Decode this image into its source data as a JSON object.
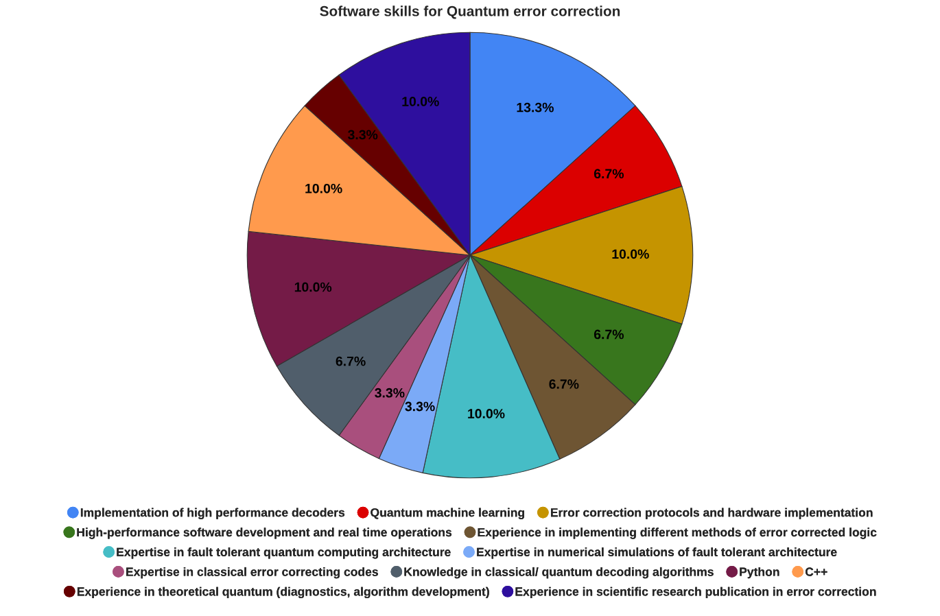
{
  "chart_data": {
    "type": "pie",
    "title": "Software skills for Quantum error correction",
    "categories": [
      "Implementation of high performance decoders",
      "Quantum machine learning",
      "Error correction protocols and hardware implementation",
      "High-performance software development and real time operations",
      "Experience in implementing different methods of error corrected logic",
      "Expertise in fault tolerant quantum computing architecture",
      "Expertise in numerical simulations of fault tolerant architecture",
      "Expertise in classical error correcting codes",
      "Knowledge in classical/ quantum decoding algorithms",
      "Python",
      "C++",
      "Experience in theoretical quantum (diagnostics, algorithm development)",
      "Experience in scientific research publication in error correction"
    ],
    "values": [
      13.3,
      6.7,
      10.0,
      6.7,
      6.7,
      10.0,
      3.3,
      3.3,
      6.7,
      10.0,
      10.0,
      3.3,
      10.0
    ],
    "value_labels": [
      "13.3%",
      "6.7%",
      "10.0%",
      "6.7%",
      "6.7%",
      "10.0%",
      "3.3%",
      "3.3%",
      "6.7%",
      "10.0%",
      "10.0%",
      "3.3%",
      "10.0%"
    ],
    "colors": [
      "#4285f4",
      "#db0000",
      "#c59400",
      "#38761d",
      "#6e5533",
      "#46bdc6",
      "#7baaf7",
      "#a94f7d",
      "#505e6b",
      "#741b47",
      "#ff9a4d",
      "#660000",
      "#2e0f9e"
    ],
    "legend": "bottom"
  }
}
